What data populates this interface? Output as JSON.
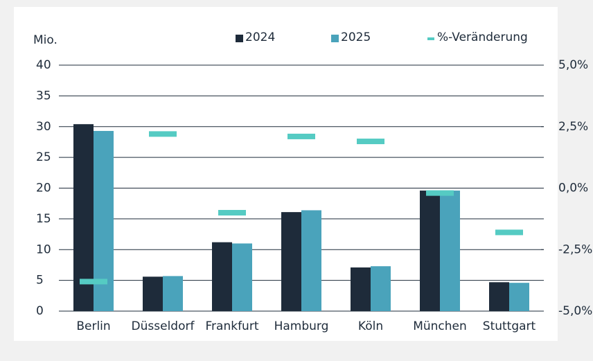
{
  "chart_data": {
    "type": "bar",
    "y_axis_label": "Mio.",
    "categories": [
      "Berlin",
      "Düsseldorf",
      "Frankfurt",
      "Hamburg",
      "Köln",
      "München",
      "Stuttgart"
    ],
    "series": [
      {
        "name": "2024",
        "color": "#1e2b3a",
        "values": [
          30.4,
          5.6,
          11.2,
          16.1,
          7.1,
          19.6,
          4.7
        ]
      },
      {
        "name": "2025",
        "color": "#4aa3bb",
        "values": [
          29.3,
          5.7,
          11.0,
          16.4,
          7.3,
          19.6,
          4.6
        ]
      },
      {
        "name": "%-Veränderung",
        "color": "#55cbc3",
        "axis": "y2",
        "values": [
          -3.8,
          2.2,
          -1.0,
          2.1,
          1.9,
          -0.2,
          -1.8
        ]
      }
    ],
    "ylim": [
      0,
      40
    ],
    "yticks": [
      0,
      5,
      10,
      15,
      20,
      25,
      30,
      35,
      40
    ],
    "y2lim": [
      -5,
      5
    ],
    "y2ticks": [
      {
        "value": -5,
        "label": "-5,0%"
      },
      {
        "value": -2.5,
        "label": "-2,5%"
      },
      {
        "value": 0,
        "label": "0,0%"
      },
      {
        "value": 2.5,
        "label": "2,5%"
      },
      {
        "value": 5,
        "label": "5,0%"
      }
    ],
    "grid": true
  }
}
